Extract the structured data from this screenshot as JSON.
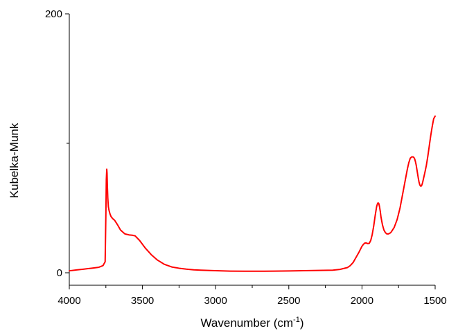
{
  "chart_data": {
    "type": "line",
    "xlabel": {
      "main": "Wavenumber (cm",
      "sup": "-1",
      "close": ")"
    },
    "ylabel": "Kubelka-Munk",
    "xlim": [
      4000,
      1500
    ],
    "ylim": [
      0,
      200
    ],
    "x_ticks": [
      4000,
      3500,
      3000,
      2500,
      2000,
      1500
    ],
    "x_minor_ticks": [
      3750,
      3250,
      2750,
      2250,
      1750
    ],
    "y_ticks": [
      0,
      200
    ],
    "y_minor_ticks": [
      100
    ],
    "grid": false,
    "series": [
      {
        "color": "#ff0000",
        "x": [
          4000,
          3950,
          3900,
          3850,
          3800,
          3770,
          3755,
          3750,
          3747,
          3744,
          3742,
          3740,
          3737,
          3733,
          3728,
          3722,
          3715,
          3705,
          3690,
          3670,
          3650,
          3620,
          3590,
          3570,
          3550,
          3520,
          3480,
          3440,
          3400,
          3350,
          3300,
          3250,
          3200,
          3150,
          3100,
          3000,
          2900,
          2800,
          2700,
          2600,
          2500,
          2400,
          2300,
          2200,
          2150,
          2100,
          2080,
          2060,
          2040,
          2020,
          2000,
          1990,
          1980,
          1970,
          1960,
          1950,
          1940,
          1930,
          1920,
          1910,
          1900,
          1895,
          1890,
          1885,
          1880,
          1875,
          1870,
          1860,
          1850,
          1840,
          1830,
          1820,
          1810,
          1800,
          1780,
          1760,
          1740,
          1720,
          1700,
          1690,
          1680,
          1670,
          1660,
          1650,
          1645,
          1640,
          1635,
          1630,
          1625,
          1620,
          1615,
          1610,
          1605,
          1600,
          1595,
          1590,
          1585,
          1580,
          1575,
          1570,
          1560,
          1550,
          1540,
          1530,
          1520,
          1510,
          1500
        ],
        "y": [
          1.5,
          2.2,
          2.8,
          3.5,
          4.2,
          5.5,
          8.5,
          45.0,
          72.0,
          80.0,
          77.0,
          68.0,
          58.0,
          51.0,
          48.0,
          45.5,
          43.5,
          42.0,
          40.5,
          37.0,
          33.0,
          30.0,
          29.2,
          29.0,
          28.5,
          25.0,
          19.0,
          14.0,
          10.0,
          6.5,
          4.5,
          3.5,
          2.8,
          2.3,
          2.0,
          1.6,
          1.3,
          1.2,
          1.2,
          1.3,
          1.4,
          1.6,
          1.8,
          2.0,
          2.6,
          4.0,
          5.5,
          8.0,
          12.0,
          16.0,
          20.5,
          22.0,
          23.0,
          23.0,
          22.5,
          22.8,
          25.0,
          29.5,
          36.0,
          44.0,
          51.0,
          53.0,
          54.0,
          53.5,
          51.0,
          47.5,
          43.0,
          37.0,
          33.0,
          31.0,
          30.0,
          30.0,
          30.5,
          31.5,
          35.0,
          41.0,
          50.0,
          62.0,
          74.0,
          80.0,
          85.0,
          88.5,
          89.5,
          89.5,
          89.0,
          88.0,
          86.0,
          83.5,
          80.0,
          76.5,
          73.0,
          70.0,
          68.0,
          67.0,
          67.0,
          68.0,
          70.0,
          72.5,
          75.0,
          77.5,
          83.0,
          90.0,
          98.0,
          106.0,
          113.0,
          119.0,
          121.0
        ]
      }
    ]
  }
}
